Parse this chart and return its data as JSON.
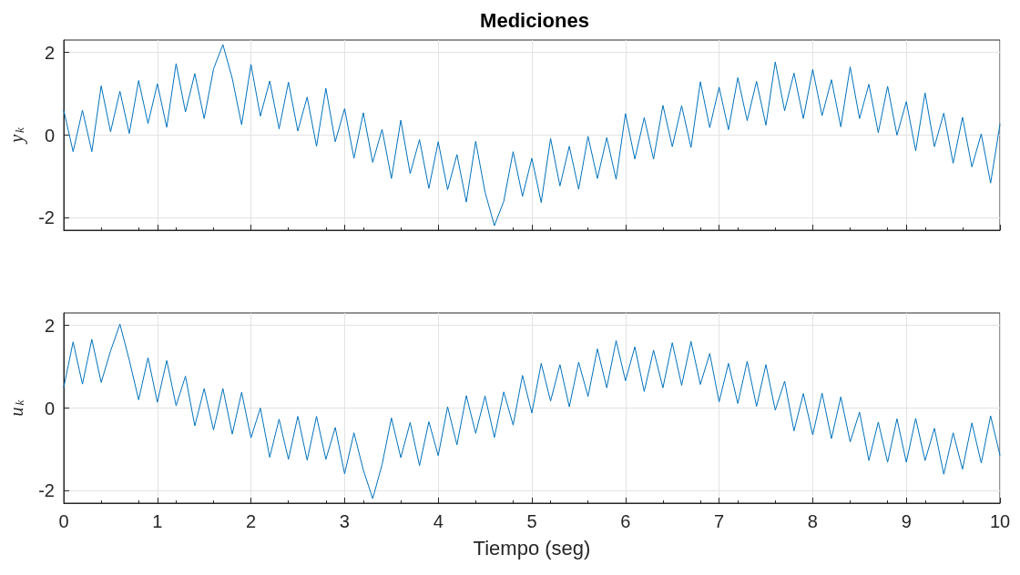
{
  "chart_data": [
    {
      "type": "line",
      "title": "Mediciones",
      "ylabel": "y$_{k}$",
      "xlim": [
        0,
        10
      ],
      "xticks": [
        0,
        1,
        2,
        3,
        4,
        5,
        6,
        7,
        8,
        9,
        10
      ],
      "ylim": [
        -2.3,
        2.3
      ],
      "yticks": [
        -2,
        0,
        2
      ],
      "grid": true,
      "marker": "none",
      "line_style": "solid",
      "tick_labels": "y",
      "x": [
        0,
        0.1,
        0.2,
        0.3,
        0.4,
        0.5,
        0.6,
        0.7,
        0.8,
        0.9,
        1,
        1.1,
        1.2,
        1.3,
        1.4,
        1.5,
        1.6,
        1.7,
        1.8,
        1.9,
        2,
        2.1,
        2.2,
        2.3,
        2.4,
        2.5,
        2.6,
        2.7,
        2.8,
        2.9,
        3,
        3.1,
        3.2,
        3.3,
        3.4,
        3.5,
        3.6,
        3.7,
        3.8,
        3.9,
        4,
        4.1,
        4.2,
        4.3,
        4.4,
        4.5,
        4.6,
        4.7,
        4.8,
        4.9,
        5,
        5.1,
        5.2,
        5.3,
        5.4,
        5.5,
        5.6,
        5.7,
        5.8,
        5.9,
        6,
        6.1,
        6.2,
        6.3,
        6.4,
        6.5,
        6.6,
        6.7,
        6.8,
        6.9,
        7,
        7.1,
        7.2,
        7.3,
        7.4,
        7.5,
        7.6,
        7.7,
        7.8,
        7.9,
        8,
        8.1,
        8.2,
        8.3,
        8.4,
        8.5,
        8.6,
        8.7,
        8.8,
        8.9,
        9,
        9.1,
        9.2,
        9.3,
        9.4,
        9.5,
        9.6,
        9.7,
        9.8,
        9.9,
        10
      ],
      "series": [
        {
          "color": "#0072bd",
          "values": [
            0.6,
            -0.4,
            0.6,
            -0.4,
            1.19,
            0.08,
            1.06,
            0.04,
            1.32,
            0.28,
            1.24,
            0.19,
            1.73,
            0.56,
            1.49,
            0.4,
            1.6,
            2.19,
            1.37,
            0.25,
            1.71,
            0.46,
            1.31,
            0.15,
            1.28,
            0.1,
            0.92,
            -0.27,
            1.13,
            -0.16,
            0.64,
            -0.56,
            0.54,
            -0.66,
            0.14,
            -1.05,
            0.36,
            -0.93,
            -0.11,
            -1.29,
            -0.16,
            -1.32,
            -0.47,
            -1.62,
            -0.15,
            -1.38,
            -2.19,
            -1.6,
            -0.4,
            -1.48,
            -0.56,
            -1.63,
            -0.08,
            -1.23,
            -0.27,
            -1.31,
            -0.03,
            -1.05,
            -0.06,
            -1.07,
            0.52,
            -0.58,
            0.42,
            -0.58,
            0.72,
            -0.28,
            0.71,
            -0.3,
            1.29,
            0.18,
            1.16,
            0.13,
            1.39,
            0.35,
            1.3,
            0.24,
            1.77,
            0.59,
            1.5,
            0.4,
            1.59,
            0.47,
            1.34,
            0.2,
            1.65,
            0.4,
            1.23,
            0.06,
            1.18,
            0,
            0.81,
            -0.38,
            1.02,
            -0.28,
            0.53,
            -0.68,
            0.43,
            -0.77,
            0.03,
            -1.16,
            0.26
          ]
        }
      ]
    },
    {
      "type": "line",
      "xlabel": "Tiempo (seg)",
      "ylabel": "u$_{k}$",
      "xlim": [
        0,
        10
      ],
      "xticks": [
        0,
        1,
        2,
        3,
        4,
        5,
        6,
        7,
        8,
        9,
        10
      ],
      "ylim": [
        -2.3,
        2.3
      ],
      "yticks": [
        -2,
        0,
        2
      ],
      "grid": true,
      "marker": "none",
      "line_style": "solid",
      "x": [
        0,
        0.1,
        0.2,
        0.3,
        0.4,
        0.5,
        0.6,
        0.7,
        0.8,
        0.9,
        1,
        1.1,
        1.2,
        1.3,
        1.4,
        1.5,
        1.6,
        1.7,
        1.8,
        1.9,
        2,
        2.1,
        2.2,
        2.3,
        2.4,
        2.5,
        2.6,
        2.7,
        2.8,
        2.9,
        3,
        3.1,
        3.2,
        3.3,
        3.4,
        3.5,
        3.6,
        3.7,
        3.8,
        3.9,
        4,
        4.1,
        4.2,
        4.3,
        4.4,
        4.5,
        4.6,
        4.7,
        4.8,
        4.9,
        5,
        5.1,
        5.2,
        5.3,
        5.4,
        5.5,
        5.6,
        5.7,
        5.8,
        5.9,
        6,
        6.1,
        6.2,
        6.3,
        6.4,
        6.5,
        6.6,
        6.7,
        6.8,
        6.9,
        7,
        7.1,
        7.2,
        7.3,
        7.4,
        7.5,
        7.6,
        7.7,
        7.8,
        7.9,
        8,
        8.1,
        8.2,
        8.3,
        8.4,
        8.5,
        8.6,
        8.7,
        8.8,
        8.9,
        9,
        9.1,
        9.2,
        9.3,
        9.4,
        9.5,
        9.6,
        9.7,
        9.8,
        9.9,
        10
      ],
      "series": [
        {
          "color": "#0072bd",
          "values": [
            0.5,
            1.6,
            0.58,
            1.66,
            0.62,
            1.38,
            2.03,
            1.16,
            0.2,
            1.22,
            0.14,
            1.15,
            0.06,
            0.77,
            -0.43,
            0.47,
            -0.53,
            0.47,
            -0.63,
            0.38,
            -0.72,
            0,
            -1.19,
            -0.27,
            -1.24,
            -0.2,
            -1.26,
            -0.2,
            -1.24,
            -0.47,
            -1.59,
            -0.6,
            -1.5,
            -2.19,
            -1.37,
            -0.24,
            -1.2,
            -0.35,
            -1.39,
            -0.33,
            -1.15,
            0.03,
            -0.89,
            0.3,
            -0.61,
            0.29,
            -0.71,
            0.39,
            -0.41,
            0.79,
            -0.12,
            1.08,
            0.17,
            1.05,
            0.03,
            1.11,
            0.28,
            1.43,
            0.49,
            1.63,
            0.66,
            1.48,
            0.4,
            1.4,
            0.49,
            1.58,
            0.55,
            1.61,
            0.57,
            1.32,
            0.15,
            1.08,
            0.11,
            1.13,
            0.04,
            1.05,
            -0.05,
            0.65,
            -0.55,
            0.35,
            -0.65,
            0.36,
            -0.74,
            0.27,
            -0.82,
            -0.1,
            -1.27,
            -0.34,
            -1.31,
            -0.26,
            -1.31,
            -0.25,
            -1.27,
            -0.49,
            -1.6,
            -0.6,
            -1.48,
            -0.36,
            -1.33,
            -0.19,
            -1.14
          ]
        }
      ]
    }
  ]
}
